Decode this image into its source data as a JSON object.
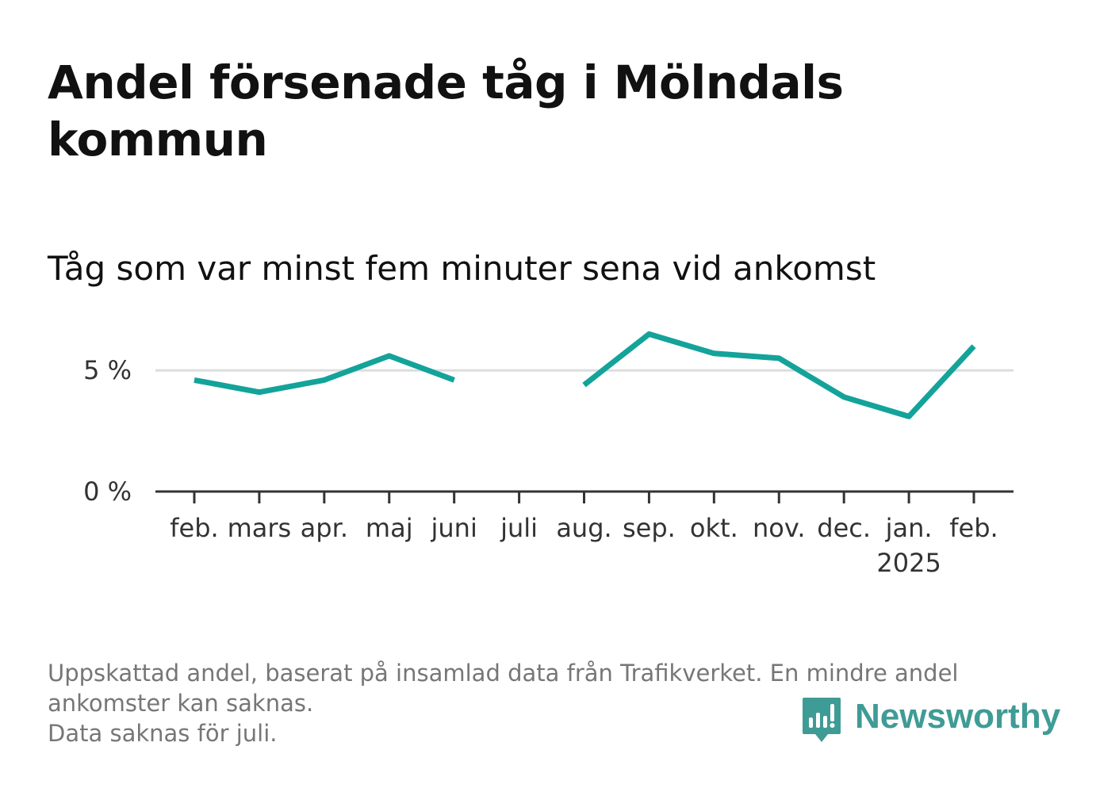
{
  "title": "Andel försenade tåg i Mölndals kommun",
  "subtitle": "Tåg som var minst fem minuter sena vid ankomst",
  "chart_data": {
    "type": "line",
    "categories": [
      "feb.",
      "mars",
      "apr.",
      "maj",
      "juni",
      "juli",
      "aug.",
      "sep.",
      "okt.",
      "nov.",
      "dec.",
      "jan.",
      "feb."
    ],
    "category_sublabels": [
      "",
      "",
      "",
      "",
      "",
      "",
      "",
      "",
      "",
      "",
      "",
      "2025",
      ""
    ],
    "series": [
      {
        "values": [
          4.6,
          4.1,
          4.6,
          5.6,
          4.6,
          null,
          4.4,
          6.5,
          5.7,
          5.5,
          3.9,
          3.1,
          6.0
        ],
        "color": "#13a39a"
      }
    ],
    "yticks": [
      0,
      5
    ],
    "ytick_labels": [
      "0 %",
      "5 %"
    ],
    "ylim": [
      0,
      7.2
    ],
    "grid": true,
    "legend": "none"
  },
  "footer": {
    "note_line1": "Uppskattad andel, baserat på insamlad data från Trafikverket. En mindre andel ankomster kan saknas.",
    "note_line2": "Data saknas för juli."
  },
  "brand": {
    "name": "Newsworthy",
    "icon": "newsworthy-logo-icon",
    "color": "#3f9b95"
  }
}
